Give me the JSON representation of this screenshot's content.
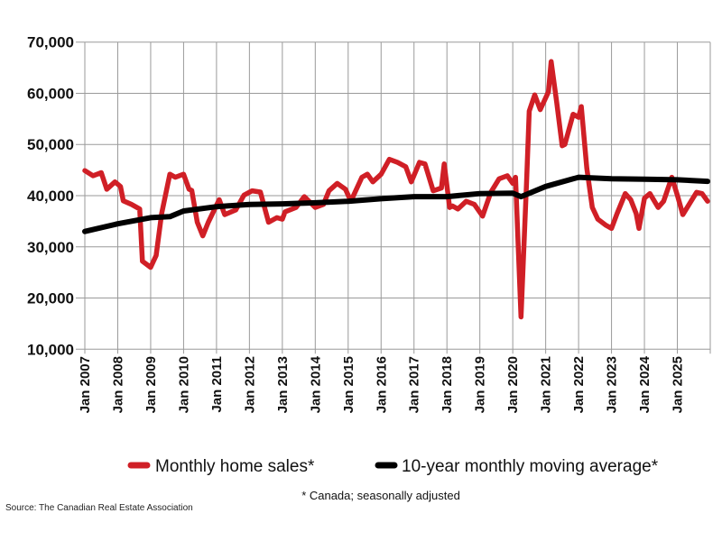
{
  "chart_data": {
    "type": "line",
    "title": "",
    "xlabel": "",
    "ylabel": "",
    "ylim": [
      10000,
      70000
    ],
    "yticks": [
      "10,000",
      "20,000",
      "30,000",
      "40,000",
      "50,000",
      "60,000",
      "70,000"
    ],
    "ytick_values": [
      10000,
      20000,
      30000,
      40000,
      50000,
      60000,
      70000
    ],
    "xlim": [
      "2007-01",
      "2026-01"
    ],
    "xticks": [
      "Jan 2007",
      "Jan 2008",
      "Jan 2009",
      "Jan 2010",
      "Jan 2011",
      "Jan 2012",
      "Jan 2013",
      "Jan 2014",
      "Jan 2015",
      "Jan 2016",
      "Jan 2017",
      "Jan 2018",
      "Jan 2019",
      "Jan 2020",
      "Jan 2021",
      "Jan 2022",
      "Jan 2023",
      "Jan 2024",
      "Jan 2025"
    ],
    "grid": true,
    "legend_position": "bottom",
    "series": [
      {
        "name": "Monthly home sales*",
        "color": "#d01f26",
        "points": [
          [
            "2007-01",
            44900
          ],
          [
            "2007-04",
            43900
          ],
          [
            "2007-07",
            44500
          ],
          [
            "2007-09",
            41250
          ],
          [
            "2007-12",
            42700
          ],
          [
            "2008-02",
            41800
          ],
          [
            "2008-03",
            39000
          ],
          [
            "2008-06",
            38300
          ],
          [
            "2008-09",
            37400
          ],
          [
            "2008-10",
            27200
          ],
          [
            "2009-01",
            26000
          ],
          [
            "2009-03",
            28300
          ],
          [
            "2009-05",
            36500
          ],
          [
            "2009-08",
            44200
          ],
          [
            "2009-10",
            43600
          ],
          [
            "2010-01",
            44200
          ],
          [
            "2010-03",
            41250
          ],
          [
            "2010-04",
            41000
          ],
          [
            "2010-06",
            34800
          ],
          [
            "2010-08",
            32150
          ],
          [
            "2010-10",
            34800
          ],
          [
            "2011-02",
            39200
          ],
          [
            "2011-04",
            36300
          ],
          [
            "2011-08",
            37200
          ],
          [
            "2011-11",
            40100
          ],
          [
            "2012-02",
            40950
          ],
          [
            "2012-05",
            40700
          ],
          [
            "2012-08",
            34800
          ],
          [
            "2012-11",
            35700
          ],
          [
            "2013-01",
            35400
          ],
          [
            "2013-02",
            36850
          ],
          [
            "2013-06",
            37700
          ],
          [
            "2013-09",
            39800
          ],
          [
            "2014-01",
            37700
          ],
          [
            "2014-04",
            38300
          ],
          [
            "2014-06",
            40950
          ],
          [
            "2014-09",
            42400
          ],
          [
            "2014-12",
            41250
          ],
          [
            "2015-02",
            38900
          ],
          [
            "2015-06",
            43600
          ],
          [
            "2015-08",
            44200
          ],
          [
            "2015-10",
            42700
          ],
          [
            "2016-01",
            44200
          ],
          [
            "2016-04",
            47100
          ],
          [
            "2016-07",
            46500
          ],
          [
            "2016-10",
            45650
          ],
          [
            "2016-12",
            42700
          ],
          [
            "2017-03",
            46500
          ],
          [
            "2017-05",
            46200
          ],
          [
            "2017-08",
            40950
          ],
          [
            "2017-11",
            41500
          ],
          [
            "2017-12",
            46200
          ],
          [
            "2018-02",
            37700
          ],
          [
            "2018-03",
            38000
          ],
          [
            "2018-05",
            37400
          ],
          [
            "2018-08",
            38900
          ],
          [
            "2018-11",
            38300
          ],
          [
            "2019-02",
            36000
          ],
          [
            "2019-05",
            40650
          ],
          [
            "2019-08",
            43300
          ],
          [
            "2019-11",
            43900
          ],
          [
            "2020-01",
            42400
          ],
          [
            "2020-02",
            43600
          ],
          [
            "2020-04",
            16300
          ],
          [
            "2020-06",
            42400
          ],
          [
            "2020-07",
            56500
          ],
          [
            "2020-09",
            59700
          ],
          [
            "2020-11",
            56800
          ],
          [
            "2021-02",
            60300
          ],
          [
            "2021-03",
            66200
          ],
          [
            "2021-05",
            58300
          ],
          [
            "2021-07",
            49750
          ],
          [
            "2021-08",
            50000
          ],
          [
            "2021-11",
            55900
          ],
          [
            "2022-01",
            55300
          ],
          [
            "2022-02",
            57400
          ],
          [
            "2022-04",
            45350
          ],
          [
            "2022-06",
            37700
          ],
          [
            "2022-08",
            35400
          ],
          [
            "2022-11",
            34200
          ],
          [
            "2023-01",
            33600
          ],
          [
            "2023-03",
            36500
          ],
          [
            "2023-06",
            40400
          ],
          [
            "2023-08",
            39200
          ],
          [
            "2023-10",
            36500
          ],
          [
            "2023-11",
            33600
          ],
          [
            "2024-01",
            39500
          ],
          [
            "2024-03",
            40400
          ],
          [
            "2024-06",
            37700
          ],
          [
            "2024-08",
            38900
          ],
          [
            "2024-11",
            43600
          ],
          [
            "2025-01",
            40100
          ],
          [
            "2025-03",
            36300
          ],
          [
            "2025-06",
            38900
          ],
          [
            "2025-08",
            40650
          ],
          [
            "2025-10",
            40400
          ],
          [
            "2025-12",
            38900
          ]
        ]
      },
      {
        "name": "10-year monthly moving average*",
        "color": "#000000",
        "points": [
          [
            "2007-01",
            33000
          ],
          [
            "2008-01",
            34500
          ],
          [
            "2009-01",
            35700
          ],
          [
            "2009-08",
            35900
          ],
          [
            "2010-01",
            37000
          ],
          [
            "2011-01",
            37850
          ],
          [
            "2012-01",
            38300
          ],
          [
            "2013-01",
            38400
          ],
          [
            "2014-01",
            38600
          ],
          [
            "2015-01",
            38900
          ],
          [
            "2016-01",
            39400
          ],
          [
            "2017-01",
            39800
          ],
          [
            "2018-01",
            39800
          ],
          [
            "2019-01",
            40400
          ],
          [
            "2020-01",
            40500
          ],
          [
            "2020-04",
            39800
          ],
          [
            "2021-01",
            41800
          ],
          [
            "2022-01",
            43600
          ],
          [
            "2023-01",
            43300
          ],
          [
            "2024-01",
            43200
          ],
          [
            "2025-01",
            43100
          ],
          [
            "2025-12",
            42800
          ]
        ]
      }
    ]
  },
  "footnote": "* Canada; seasonally adjusted",
  "source": "Source: The Canadian Real Estate Association"
}
